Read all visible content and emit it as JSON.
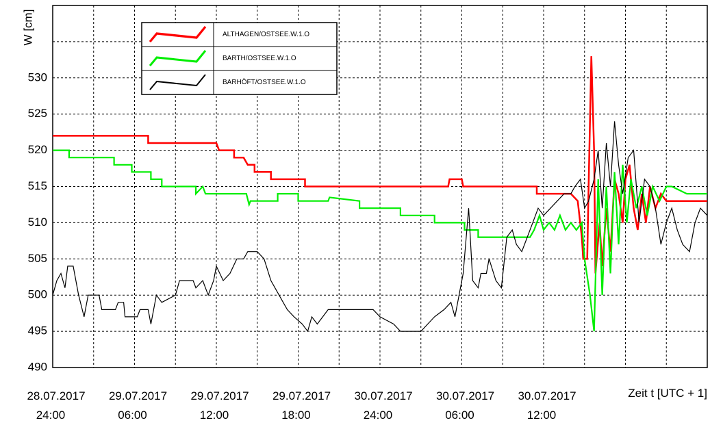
{
  "chart_data": {
    "type": "line",
    "ylabel": "W [cm]",
    "xlabel": "Zeit t [UTC + 1]",
    "xlim": [
      0,
      48
    ],
    "ylim": [
      490,
      540
    ],
    "yticks": [
      490,
      495,
      500,
      505,
      510,
      515,
      520,
      525,
      530
    ],
    "ygrid": [
      535
    ],
    "xticks": [
      {
        "value": 0,
        "label": "28.07.2017 24:00"
      },
      {
        "value": 6,
        "label": "29.07.2017 06:00"
      },
      {
        "value": 12,
        "label": "29.07.2017 12:00"
      },
      {
        "value": 18,
        "label": "29.07.2017 18:00"
      },
      {
        "value": 24,
        "label": "30.07.2017 24:00"
      },
      {
        "value": 30,
        "label": "30.07.2017 06:00"
      },
      {
        "value": 36,
        "label": "30.07.2017 12:00"
      }
    ],
    "xgrid": [
      3,
      9,
      15,
      21,
      27,
      33,
      39,
      42,
      45
    ],
    "grid": true,
    "series": [
      {
        "name": "ALTHAGEN/OSTSEE.W.1.O",
        "color": "#ff0000",
        "width": 2.5,
        "x": [
          0,
          7,
          7,
          12,
          12.2,
          13.3,
          13.3,
          14,
          14.3,
          14.8,
          14.8,
          16,
          16,
          18.5,
          18.5,
          29,
          29.1,
          30,
          30.1,
          35.5,
          35.5,
          38,
          38.5,
          38.8,
          38.9,
          39.2,
          39.3,
          39.5,
          39.7,
          39.8,
          40.1,
          40.3,
          40.6,
          40.9,
          41.2,
          41.5,
          41.8,
          42,
          42.3,
          42.6,
          42.9,
          43.2,
          43.5,
          43.8,
          44.2,
          44.6,
          45,
          46,
          48
        ],
        "values": [
          522,
          522,
          521,
          521,
          520,
          520,
          519,
          519,
          518,
          518,
          517,
          517,
          516,
          516,
          515,
          515,
          516,
          516,
          515,
          515,
          514,
          514,
          513,
          508,
          505,
          505,
          515,
          533,
          520,
          503,
          510,
          504,
          512,
          506,
          516,
          514,
          510,
          516,
          518,
          512,
          509,
          514,
          510,
          515,
          512,
          514,
          513,
          513,
          513
        ]
      },
      {
        "name": "BARTH/OSTSEE.W.1.O",
        "color": "#00ee00",
        "width": 2.2,
        "x": [
          0,
          1.2,
          1.2,
          4.5,
          4.5,
          5.8,
          5.8,
          7.2,
          7.2,
          8,
          8,
          10.5,
          10.5,
          11,
          11.2,
          14.2,
          14.4,
          14.5,
          14.6,
          16.5,
          16.5,
          18,
          18,
          20.2,
          20.3,
          22.5,
          22.5,
          25.5,
          25.5,
          28,
          28,
          30.2,
          30.2,
          31.2,
          31.2,
          35,
          35.3,
          35.7,
          36,
          36.4,
          36.8,
          37.2,
          37.6,
          38,
          38.4,
          38.8,
          39,
          39.4,
          39.7,
          40,
          40.3,
          40.6,
          40.9,
          41.2,
          41.5,
          41.8,
          42.1,
          42.4,
          42.8,
          43.2,
          43.6,
          44,
          44.5,
          45,
          45.4,
          46.5,
          48
        ],
        "values": [
          520,
          520,
          519,
          519,
          518,
          518,
          517,
          517,
          516,
          516,
          515,
          515,
          514,
          515,
          514,
          514,
          512.5,
          513,
          513,
          513,
          514,
          514,
          513,
          513,
          513.5,
          513,
          512,
          512,
          511,
          511,
          510,
          510,
          509,
          509,
          508,
          508,
          509,
          511,
          509,
          510,
          509,
          511,
          509,
          510,
          509,
          510,
          505,
          500,
          495,
          516,
          500,
          515,
          503,
          517,
          507,
          518,
          510,
          516,
          512,
          515,
          511,
          515,
          513,
          515,
          515,
          514,
          514
        ]
      },
      {
        "name": "BARHÖFT/OSTSEE.W.1.O",
        "color": "#000000",
        "width": 1.2,
        "x": [
          0,
          0.3,
          0.6,
          0.9,
          1.1,
          1.5,
          1.9,
          2.3,
          2.6,
          3.4,
          3.6,
          4.6,
          4.8,
          5.2,
          5.3,
          6.2,
          6.4,
          7,
          7.2,
          7.6,
          8,
          9,
          9.3,
          10.3,
          10.5,
          11,
          11.4,
          11.8,
          12,
          12.5,
          13,
          13.5,
          14,
          14.3,
          15,
          15.5,
          16,
          16.6,
          17.2,
          17.7,
          18.3,
          18.7,
          19,
          19.4,
          19.8,
          20.2,
          23.5,
          24,
          25,
          25.5,
          27,
          27.5,
          28,
          28.7,
          29.2,
          29.5,
          30.1,
          30.5,
          30.8,
          31.2,
          31.4,
          31.8,
          32,
          32.5,
          32.9,
          33.3,
          33.7,
          34,
          34.4,
          34.8,
          35.2,
          35.6,
          36,
          36.5,
          37,
          37.5,
          38,
          38.3,
          38.7,
          39,
          39.3,
          39.7,
          40,
          40.3,
          40.6,
          40.9,
          41.2,
          41.5,
          41.8,
          42.2,
          42.6,
          43,
          43.4,
          43.8,
          44.2,
          44.6,
          45,
          45.4,
          45.8,
          46.2,
          46.7,
          47.1,
          47.5,
          48
        ],
        "values": [
          500,
          502,
          503,
          501,
          504,
          504,
          500,
          497,
          500,
          500,
          498,
          498,
          499,
          499,
          497,
          497,
          498,
          498,
          496,
          500,
          499,
          500,
          502,
          502,
          501,
          502,
          500,
          502,
          504,
          502,
          503,
          505,
          505,
          506,
          506,
          505,
          502,
          500,
          498,
          497,
          496,
          495,
          497,
          496,
          497,
          498,
          498,
          497,
          496,
          495,
          495,
          496,
          497,
          498,
          499,
          497,
          503,
          512,
          502,
          501,
          503,
          503,
          505,
          502,
          501,
          508,
          509,
          507,
          506,
          508,
          510,
          512,
          511,
          512,
          513,
          514,
          514,
          515,
          516,
          512,
          513,
          516,
          520,
          512,
          521,
          515,
          524,
          518,
          514,
          519,
          520,
          510,
          516,
          515,
          512,
          507,
          510,
          512,
          509,
          507,
          506,
          510,
          512,
          511
        ]
      }
    ]
  }
}
